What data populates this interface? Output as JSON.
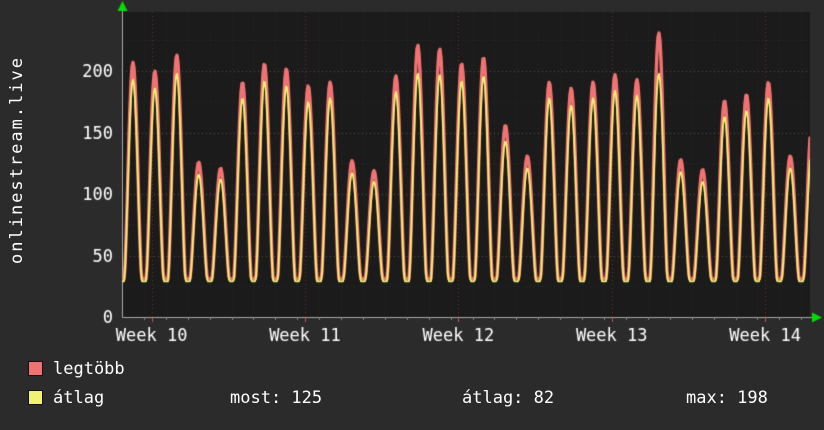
{
  "chart_data": {
    "type": "line",
    "ylabel": "onlinestream.live",
    "background": "#2b2b2b",
    "plot_background": "#1b1b1b",
    "axis_color": "#aaaaaa",
    "arrow_color": "#00dd00",
    "week_gridline_color": "#aa3333",
    "y_axis": {
      "ticks": [
        0,
        50,
        100,
        150,
        200
      ],
      "max": 248
    },
    "x_axis": {
      "tick_labels": [
        "Week 10",
        "Week 11",
        "Week 12",
        "Week 13",
        "Week 14"
      ],
      "tick_positions_days": [
        1.35,
        8.35,
        15.35,
        22.35,
        29.35
      ],
      "total_days": 31.4
    },
    "series": [
      {
        "name": "legtöbb",
        "color": "#f17272",
        "trough": 31,
        "daily_peaks": [
          207,
          200,
          213,
          126,
          121,
          191,
          206,
          202,
          188,
          191,
          127,
          119,
          196,
          221,
          218,
          206,
          211,
          156,
          131,
          191,
          186,
          191,
          197,
          193,
          231,
          128,
          120,
          176,
          181,
          191,
          131,
          160
        ]
      },
      {
        "name": "átlag",
        "color": "#f2f272",
        "trough": 29,
        "daily_peaks": [
          193,
          186,
          198,
          116,
          112,
          178,
          192,
          188,
          175,
          178,
          117,
          110,
          183,
          198,
          197,
          192,
          196,
          143,
          121,
          178,
          172,
          178,
          184,
          180,
          198,
          118,
          110,
          163,
          168,
          178,
          121,
          140
        ]
      }
    ],
    "stats": {
      "most": "most: 125",
      "avg": "átlag: 82",
      "max": "max: 198"
    }
  }
}
